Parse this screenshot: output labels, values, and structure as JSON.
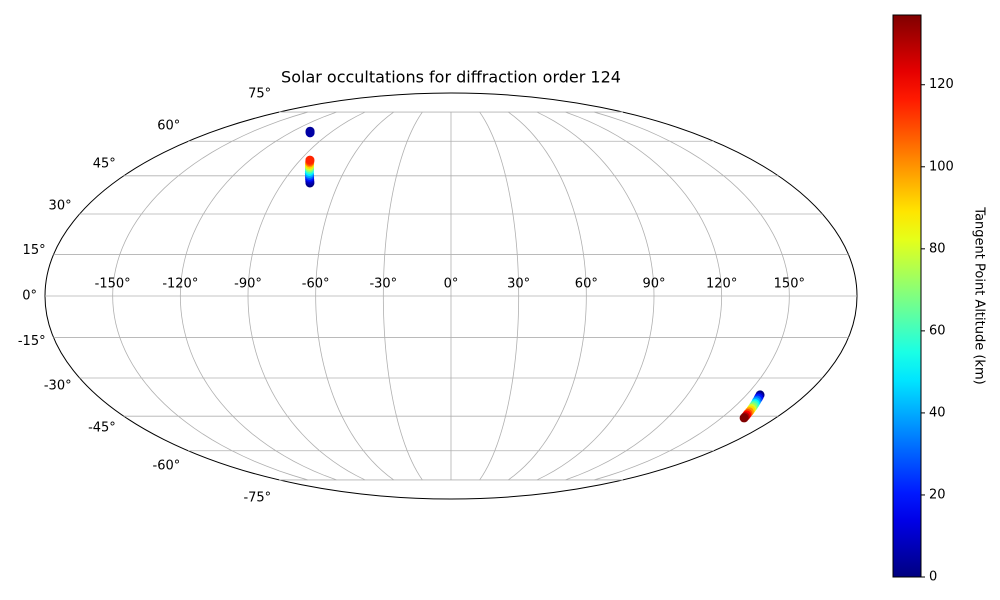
{
  "chart_data": {
    "type": "scatter",
    "projection": "mollweide",
    "title": "Solar occultations for diffraction order 124",
    "colormap": "jet",
    "grid": true,
    "colorbar_label": "Tangent Point Altitude (km)",
    "clim": [
      0,
      137
    ],
    "cticks": [
      0,
      20,
      40,
      60,
      80,
      100,
      120
    ],
    "xlim": [
      -180,
      180
    ],
    "ylim": [
      -90,
      90
    ],
    "xticks": [
      {
        "value": -150,
        "label": "-150°"
      },
      {
        "value": -120,
        "label": "-120°"
      },
      {
        "value": -90,
        "label": "-90°"
      },
      {
        "value": -60,
        "label": "-60°"
      },
      {
        "value": -30,
        "label": "-30°"
      },
      {
        "value": 0,
        "label": "0°"
      },
      {
        "value": 30,
        "label": "30°"
      },
      {
        "value": 60,
        "label": "60°"
      },
      {
        "value": 90,
        "label": "90°"
      },
      {
        "value": 120,
        "label": "120°"
      },
      {
        "value": 150,
        "label": "150°"
      }
    ],
    "yticks": [
      {
        "value": -75,
        "label": "-75°"
      },
      {
        "value": -60,
        "label": "-60°"
      },
      {
        "value": -45,
        "label": "-45°"
      },
      {
        "value": -30,
        "label": "-30°"
      },
      {
        "value": -15,
        "label": "-15°"
      },
      {
        "value": 0,
        "label": "0°"
      },
      {
        "value": 15,
        "label": "15°"
      },
      {
        "value": 30,
        "label": "30°"
      },
      {
        "value": 45,
        "label": "45°"
      },
      {
        "value": 60,
        "label": "60°"
      },
      {
        "value": 75,
        "label": "75°"
      }
    ],
    "x": [
      -106,
      -107,
      -105,
      -75.3,
      -75.9,
      -76.6,
      -77.3,
      -78.0,
      -78.8,
      -79.5,
      -80.2,
      -80.9,
      -81.6,
      -82.3,
      -83.0,
      -83.6,
      -84.2,
      156.9,
      157.3,
      157.7,
      158.1,
      158.5,
      159.0,
      159.4,
      159.8,
      160.2,
      160.6,
      161.0,
      161.4,
      161.8,
      162.2,
      162.5
    ],
    "y": [
      64.4,
      64.8,
      64.0,
      42.1,
      42.8,
      43.6,
      44.4,
      45.2,
      46.0,
      46.8,
      47.6,
      48.3,
      49.0,
      49.7,
      50.4,
      51.0,
      51.6,
      -36.5,
      -37.2,
      -37.8,
      -38.5,
      -39.2,
      -39.9,
      -40.5,
      -41.2,
      -41.9,
      -42.5,
      -43.2,
      -43.9,
      -44.5,
      -45.2,
      -45.7
    ],
    "c": [
      2,
      3,
      5,
      0,
      5,
      10,
      20,
      30,
      40,
      50,
      60,
      70,
      80,
      90,
      100,
      110,
      115,
      0,
      10,
      20,
      30,
      40,
      50,
      60,
      70,
      80,
      90,
      100,
      110,
      120,
      130,
      137
    ]
  }
}
